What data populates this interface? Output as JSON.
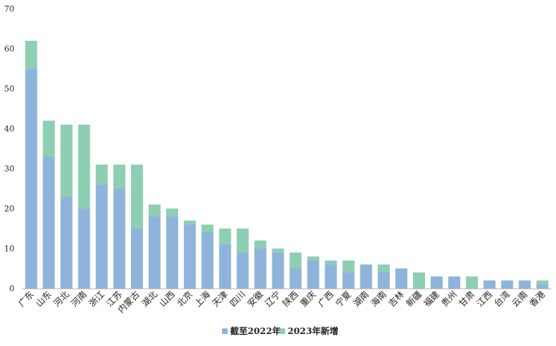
{
  "chart_data": {
    "type": "bar",
    "stacked": true,
    "title": "",
    "xlabel": "",
    "ylabel": "",
    "ylim": [
      0,
      70
    ],
    "yticks": [
      0,
      10,
      20,
      30,
      40,
      50,
      60,
      70
    ],
    "grid": false,
    "legend_position": "bottom",
    "categories": [
      "广东",
      "山东",
      "河北",
      "河南",
      "浙江",
      "江苏",
      "内蒙古",
      "湖北",
      "山西",
      "北京",
      "上海",
      "天津",
      "四川",
      "安徽",
      "辽宁",
      "陕西",
      "重庆",
      "广西",
      "宁夏",
      "湖南",
      "海南",
      "吉林",
      "新疆",
      "福建",
      "贵州",
      "甘肃",
      "江西",
      "台湾",
      "云南",
      "香港"
    ],
    "series": [
      {
        "name": "截至2022年",
        "color": "#8fb4dc",
        "values": [
          55,
          33,
          23,
          20,
          26,
          25,
          15,
          18,
          18,
          16,
          14,
          11,
          9,
          10,
          9,
          5,
          7,
          6,
          4,
          6,
          4,
          5,
          0,
          3,
          3,
          0,
          2,
          2,
          2,
          1
        ]
      },
      {
        "name": "2023年新增",
        "color": "#8ecfb4",
        "values": [
          7,
          9,
          18,
          21,
          5,
          6,
          16,
          3,
          2,
          1,
          2,
          4,
          6,
          2,
          1,
          4,
          1,
          1,
          3,
          0,
          2,
          0,
          4,
          0,
          0,
          3,
          0,
          0,
          0,
          1
        ]
      }
    ]
  }
}
